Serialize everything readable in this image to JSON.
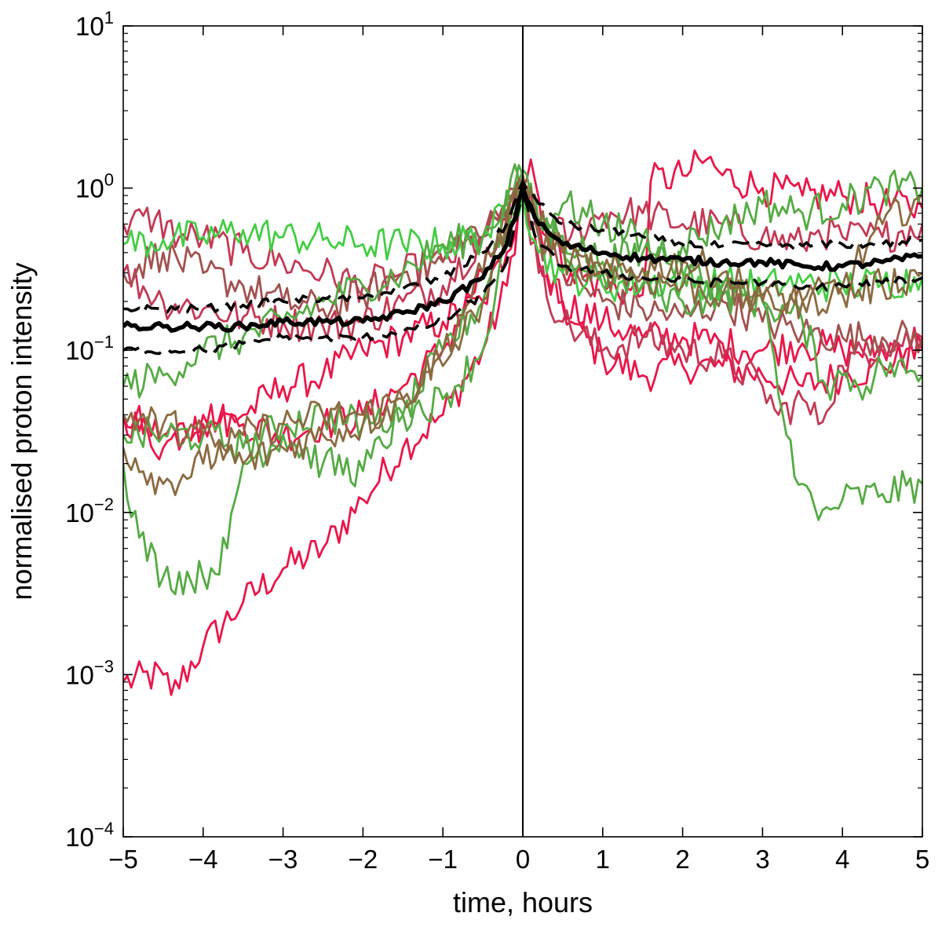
{
  "chart_data": {
    "type": "line",
    "title": "",
    "xlabel": "time, hours",
    "ylabel": "normalised proton intensity",
    "xlim": [
      -5,
      5
    ],
    "ylim": [
      0.0001,
      10
    ],
    "yscale": "log",
    "grid": false,
    "legend": "none",
    "x_ticks": [
      -5,
      -4,
      -3,
      -2,
      -1,
      0,
      1,
      2,
      3,
      4,
      5
    ],
    "x_tick_labels": [
      "−5",
      "−4",
      "−3",
      "−2",
      "−1",
      "0",
      "1",
      "2",
      "3",
      "4",
      "5"
    ],
    "y_ticks": [
      {
        "value": 0.0001,
        "base": "10",
        "exp": "−4"
      },
      {
        "value": 0.001,
        "base": "10",
        "exp": "−3"
      },
      {
        "value": 0.01,
        "base": "10",
        "exp": "−2"
      },
      {
        "value": 0.1,
        "base": "10",
        "exp": "−1"
      },
      {
        "value": 1,
        "base": "10",
        "exp": "0"
      },
      {
        "value": 10,
        "base": "10",
        "exp": "1"
      }
    ],
    "vertical_line_x": 0,
    "series": [
      {
        "color": "#e8174a",
        "style": "thin",
        "x": [
          -5,
          -4.5,
          -4.4,
          -4,
          -3.5,
          -3,
          -2.5,
          -2,
          -1.5,
          -1,
          -0.5,
          -0.2,
          0,
          0.1,
          0.3,
          0.6,
          1,
          1.5,
          2,
          2.5,
          3,
          3.5,
          4,
          4.5,
          5
        ],
        "y": [
          0.0009,
          0.001,
          0.00075,
          0.0015,
          0.0028,
          0.0045,
          0.006,
          0.012,
          0.025,
          0.04,
          0.1,
          0.25,
          1,
          0.9,
          0.3,
          0.15,
          0.09,
          0.07,
          0.08,
          0.08,
          0.07,
          0.06,
          0.07,
          0.08,
          0.1
        ]
      },
      {
        "color": "#e8174a",
        "style": "thin",
        "x": [
          -5,
          -4.5,
          -4,
          -3.5,
          -3,
          -2.5,
          -2,
          -1.5,
          -1,
          -0.5,
          -0.2,
          0,
          0.1,
          0.3,
          0.6,
          1,
          1.5,
          1.6,
          2,
          2.3,
          2.5,
          3,
          3.5,
          4,
          4.5,
          5
        ],
        "y": [
          0.04,
          0.03,
          0.035,
          0.04,
          0.06,
          0.07,
          0.1,
          0.12,
          0.15,
          0.2,
          0.4,
          1,
          1.5,
          0.5,
          0.3,
          0.25,
          0.22,
          1.1,
          1.2,
          1.5,
          1.2,
          1.0,
          0.9,
          0.9,
          0.8,
          0.75
        ]
      },
      {
        "color": "#e8174a",
        "style": "thin",
        "x": [
          -5,
          -4.5,
          -4,
          -3.5,
          -3,
          -2.5,
          -2,
          -1.5,
          -1,
          -0.5,
          0,
          0.2,
          0.5,
          1,
          1.5,
          2,
          2.5,
          3,
          3.5,
          4,
          4.5,
          5
        ],
        "y": [
          0.04,
          0.025,
          0.04,
          0.035,
          0.03,
          0.035,
          0.04,
          0.06,
          0.1,
          0.3,
          1,
          0.35,
          0.2,
          0.15,
          0.12,
          0.12,
          0.11,
          0.1,
          0.11,
          0.1,
          0.1,
          0.12
        ]
      },
      {
        "color": "#c23a55",
        "style": "thin",
        "x": [
          -5,
          -4.6,
          -4.3,
          -4,
          -3.5,
          -3,
          -2.5,
          -2,
          -1.5,
          -1,
          -0.5,
          0,
          0.2,
          0.6,
          1,
          1.5,
          2,
          2.5,
          3,
          3.5,
          3.7,
          4,
          4.5,
          5
        ],
        "y": [
          0.6,
          0.65,
          0.5,
          0.5,
          0.4,
          0.35,
          0.3,
          0.25,
          0.3,
          0.35,
          0.5,
          1,
          0.6,
          0.5,
          0.7,
          0.7,
          0.6,
          0.6,
          0.5,
          0.45,
          0.55,
          0.5,
          0.5,
          0.6
        ]
      },
      {
        "color": "#c23a55",
        "style": "thin",
        "x": [
          -5,
          -4.5,
          -4,
          -3.5,
          -3,
          -2.5,
          -2,
          -1.5,
          -1,
          -0.5,
          0,
          0.2,
          0.5,
          1,
          1.5,
          2,
          2.5,
          3,
          3.2,
          3.5,
          3.7,
          4,
          4.5,
          5
        ],
        "y": [
          0.3,
          0.2,
          0.18,
          0.16,
          0.15,
          0.14,
          0.15,
          0.2,
          0.25,
          0.5,
          1,
          0.3,
          0.15,
          0.1,
          0.12,
          0.1,
          0.09,
          0.06,
          0.04,
          0.05,
          0.035,
          0.08,
          0.11,
          0.12
        ]
      },
      {
        "color": "#a0524f",
        "style": "thin",
        "x": [
          -5,
          -4.5,
          -4,
          -3.5,
          -3,
          -2.5,
          -2,
          -1.5,
          -1,
          -0.7,
          -0.5,
          0,
          0.2,
          0.5,
          1,
          1.5,
          2,
          2.5,
          3,
          3.5,
          4,
          4.5,
          5
        ],
        "y": [
          0.3,
          0.4,
          0.3,
          0.25,
          0.2,
          0.18,
          0.22,
          0.3,
          0.35,
          0.55,
          0.5,
          1,
          0.5,
          0.3,
          0.2,
          0.18,
          0.16,
          0.2,
          0.15,
          0.13,
          0.12,
          0.12,
          0.12
        ]
      },
      {
        "color": "#44cc44",
        "style": "thin",
        "x": [
          -5,
          -4.5,
          -4,
          -3.5,
          -3,
          -2.5,
          -2,
          -1.5,
          -1,
          -0.5,
          0,
          0.2,
          0.5,
          1,
          1.5,
          2,
          2.5,
          3,
          3.5,
          4,
          4.5,
          5
        ],
        "y": [
          0.45,
          0.48,
          0.5,
          0.55,
          0.5,
          0.48,
          0.45,
          0.45,
          0.45,
          0.5,
          0.9,
          0.4,
          0.3,
          0.25,
          0.26,
          0.27,
          0.26,
          0.25,
          0.26,
          0.25,
          0.26,
          0.28
        ]
      },
      {
        "color": "#55aa44",
        "style": "thin",
        "x": [
          -5,
          -4.8,
          -4.5,
          -4,
          -3.7,
          -3.5,
          -3,
          -2.5,
          -2,
          -1.5,
          -1,
          -0.5,
          -0.1,
          0,
          0.2,
          0.5,
          1,
          1.5,
          2,
          2.5,
          3,
          3.3,
          3.5,
          3.7,
          4,
          4.5,
          5
        ],
        "y": [
          0.02,
          0.007,
          0.004,
          0.004,
          0.006,
          0.02,
          0.03,
          0.02,
          0.018,
          0.04,
          0.1,
          0.2,
          1.4,
          1,
          0.6,
          0.8,
          0.6,
          0.5,
          0.3,
          0.25,
          0.2,
          0.03,
          0.015,
          0.009,
          0.012,
          0.013,
          0.015
        ]
      },
      {
        "color": "#55aa44",
        "style": "thin",
        "x": [
          -5,
          -4.5,
          -4,
          -3.5,
          -3,
          -2.5,
          -2,
          -1.5,
          -1,
          -0.5,
          0,
          0.2,
          0.5,
          1,
          1.5,
          2,
          2.5,
          3,
          3.5,
          4,
          4.5,
          5
        ],
        "y": [
          0.06,
          0.07,
          0.1,
          0.12,
          0.15,
          0.2,
          0.25,
          0.3,
          0.45,
          0.5,
          1.2,
          0.6,
          0.5,
          0.35,
          0.4,
          0.45,
          0.6,
          0.8,
          0.7,
          0.8,
          1.0,
          1.0
        ]
      },
      {
        "color": "#55aa44",
        "style": "thin",
        "x": [
          -5,
          -4.5,
          -4,
          -3.5,
          -3,
          -2.5,
          -2,
          -1.5,
          -1,
          -0.5,
          0,
          0.2,
          0.6,
          1,
          1.5,
          2,
          2.5,
          3,
          3.5,
          3.8,
          4,
          4.3,
          4.5,
          5
        ],
        "y": [
          0.03,
          0.03,
          0.03,
          0.025,
          0.035,
          0.04,
          0.035,
          0.04,
          0.05,
          0.1,
          1.3,
          0.6,
          0.35,
          0.3,
          0.25,
          0.2,
          0.22,
          0.2,
          0.15,
          0.06,
          0.07,
          0.06,
          0.08,
          0.07
        ]
      },
      {
        "color": "#8a6a40",
        "style": "thin",
        "x": [
          -5,
          -4.5,
          -4,
          -3.5,
          -3,
          -2.5,
          -2,
          -1.5,
          -1,
          -0.5,
          0,
          0.2,
          0.5,
          1,
          1.5,
          2,
          2.5,
          3,
          3.5,
          4,
          4.5,
          5
        ],
        "y": [
          0.025,
          0.015,
          0.02,
          0.03,
          0.035,
          0.04,
          0.04,
          0.05,
          0.08,
          0.2,
          1.2,
          0.5,
          0.4,
          0.3,
          0.28,
          0.25,
          0.22,
          0.2,
          0.2,
          0.22,
          0.25,
          0.3
        ]
      },
      {
        "color": "#8a6a40",
        "style": "thin",
        "x": [
          -5,
          -4.5,
          -4,
          -3.5,
          -3,
          -2.5,
          -2,
          -1.5,
          -1,
          -0.5,
          0,
          0.3,
          0.6,
          1,
          1.5,
          2,
          2.5,
          3,
          3.5,
          4,
          4.5,
          5
        ],
        "y": [
          0.04,
          0.035,
          0.03,
          0.02,
          0.025,
          0.03,
          0.035,
          0.05,
          0.1,
          0.3,
          1.1,
          0.5,
          0.35,
          0.3,
          0.32,
          0.35,
          0.3,
          0.22,
          0.2,
          0.25,
          0.6,
          0.9
        ]
      },
      {
        "color": "#000000",
        "style": "mean",
        "x": [
          -5,
          -4.5,
          -4,
          -3.5,
          -3,
          -2.5,
          -2,
          -1.5,
          -1,
          -0.5,
          -0.2,
          0,
          0.2,
          0.5,
          1,
          1.5,
          2,
          2.5,
          3,
          3.5,
          4,
          4.5,
          5
        ],
        "y": [
          0.14,
          0.14,
          0.14,
          0.14,
          0.15,
          0.15,
          0.15,
          0.17,
          0.2,
          0.28,
          0.45,
          1,
          0.6,
          0.45,
          0.4,
          0.37,
          0.36,
          0.35,
          0.35,
          0.33,
          0.33,
          0.35,
          0.38
        ]
      },
      {
        "color": "#000000",
        "style": "dash",
        "x": [
          -5,
          -4.5,
          -4,
          -3.5,
          -3,
          -2.5,
          -2,
          -1.5,
          -1,
          -0.5,
          -0.2,
          0,
          0.2,
          0.5,
          1,
          1.5,
          2,
          2.5,
          3,
          3.5,
          4,
          4.5,
          5
        ],
        "y": [
          0.18,
          0.18,
          0.18,
          0.19,
          0.2,
          0.21,
          0.21,
          0.24,
          0.28,
          0.4,
          0.6,
          1.1,
          0.8,
          0.6,
          0.55,
          0.5,
          0.45,
          0.44,
          0.45,
          0.44,
          0.45,
          0.45,
          0.48
        ]
      },
      {
        "color": "#000000",
        "style": "dash",
        "x": [
          -5,
          -4.5,
          -4,
          -3.5,
          -3,
          -2.5,
          -2,
          -1.5,
          -1,
          -0.5,
          -0.2,
          0,
          0.2,
          0.5,
          1,
          1.5,
          2,
          2.5,
          3,
          3.5,
          4,
          4.5,
          5
        ],
        "y": [
          0.1,
          0.1,
          0.1,
          0.11,
          0.12,
          0.12,
          0.12,
          0.13,
          0.15,
          0.22,
          0.35,
          0.9,
          0.45,
          0.33,
          0.3,
          0.28,
          0.27,
          0.26,
          0.26,
          0.24,
          0.25,
          0.26,
          0.28
        ]
      }
    ]
  }
}
